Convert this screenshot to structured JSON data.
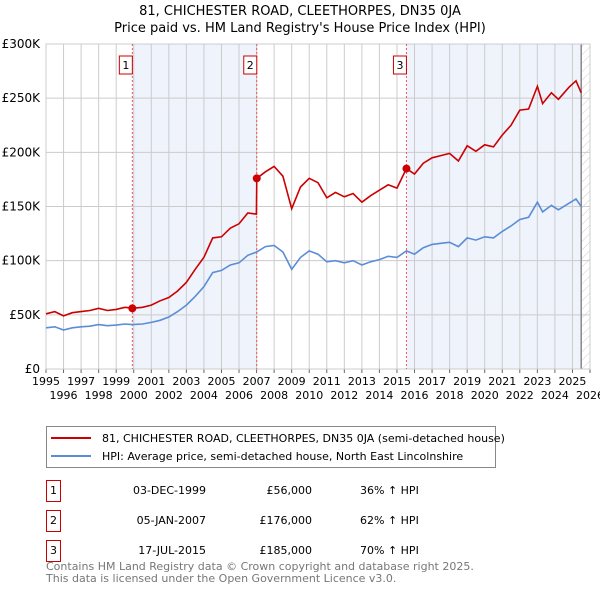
{
  "chart_data": {
    "type": "line",
    "title": "81, CHICHESTER ROAD, CLEETHORPES, DN35 0JA",
    "subtitle": "Price paid vs. HM Land Registry's House Price Index (HPI)",
    "xlabel": "",
    "ylabel": "",
    "xlim": [
      1995,
      2026
    ],
    "ylim": [
      0,
      300000
    ],
    "x_ticks": [
      "1995",
      "1996",
      "1997",
      "1998",
      "1999",
      "2000",
      "2001",
      "2002",
      "2003",
      "2004",
      "2005",
      "2006",
      "2007",
      "2008",
      "2009",
      "2010",
      "2011",
      "2012",
      "2013",
      "2014",
      "2015",
      "2016",
      "2017",
      "2018",
      "2019",
      "2020",
      "2021",
      "2022",
      "2023",
      "2024",
      "2025",
      "2026"
    ],
    "y_ticks": [
      {
        "v": 0,
        "label": "£0"
      },
      {
        "v": 50000,
        "label": "£50K"
      },
      {
        "v": 100000,
        "label": "£100K"
      },
      {
        "v": 150000,
        "label": "£150K"
      },
      {
        "v": 200000,
        "label": "£200K"
      },
      {
        "v": 250000,
        "label": "£250K"
      },
      {
        "v": 300000,
        "label": "£300K"
      }
    ],
    "grid": true,
    "data_end": 2025.5,
    "series": [
      {
        "name": "81, CHICHESTER ROAD, CLEETHORPES, DN35 0JA (semi-detached house)",
        "color": "#cc0000",
        "x": [
          1995,
          1995.5,
          1996,
          1996.5,
          1997,
          1997.5,
          1998,
          1998.5,
          1999,
          1999.5,
          1999.92,
          2000.5,
          2001,
          2001.5,
          2002,
          2002.5,
          2003,
          2003.5,
          2004,
          2004.5,
          2005,
          2005.5,
          2006,
          2006.5,
          2006.99,
          2007.01,
          2007.5,
          2008,
          2008.5,
          2009,
          2009.5,
          2010,
          2010.5,
          2011,
          2011.5,
          2012,
          2012.5,
          2013,
          2013.5,
          2014,
          2014.5,
          2015,
          2015.54,
          2016,
          2016.5,
          2017,
          2017.5,
          2018,
          2018.5,
          2019,
          2019.5,
          2020,
          2020.5,
          2021,
          2021.5,
          2022,
          2022.5,
          2023,
          2023.3,
          2023.8,
          2024.2,
          2024.8,
          2025.2,
          2025.5
        ],
        "y": [
          51,
          53,
          49,
          52,
          53,
          54,
          56,
          54,
          55,
          57,
          56,
          57,
          59,
          63,
          66,
          72,
          80,
          92,
          103,
          121,
          122,
          130,
          134,
          144,
          143,
          176,
          182,
          187,
          178,
          148,
          168,
          176,
          172,
          158,
          163,
          159,
          162,
          154,
          160,
          165,
          170,
          167,
          185,
          180,
          190,
          195,
          197,
          199,
          192,
          206,
          201,
          207,
          205,
          216,
          225,
          239,
          240,
          261,
          245,
          255,
          249,
          260,
          266,
          255
        ],
        "unit": "thousand GBP"
      },
      {
        "name": "HPI: Average price, semi-detached house, North East Lincolnshire",
        "color": "#5b8dd6",
        "x": [
          1995,
          1995.5,
          1996,
          1996.5,
          1997,
          1997.5,
          1998,
          1998.5,
          1999,
          1999.5,
          1999.92,
          2000.5,
          2001,
          2001.5,
          2002,
          2002.5,
          2003,
          2003.5,
          2004,
          2004.5,
          2005,
          2005.5,
          2006,
          2006.5,
          2007,
          2007.5,
          2008,
          2008.5,
          2009,
          2009.5,
          2010,
          2010.5,
          2011,
          2011.5,
          2012,
          2012.5,
          2013,
          2013.5,
          2014,
          2014.5,
          2015,
          2015.54,
          2016,
          2016.5,
          2017,
          2017.5,
          2018,
          2018.5,
          2019,
          2019.5,
          2020,
          2020.5,
          2021,
          2021.5,
          2022,
          2022.5,
          2023,
          2023.3,
          2023.8,
          2024.2,
          2024.8,
          2025.2,
          2025.5
        ],
        "y": [
          38,
          39,
          36,
          38,
          39,
          39.5,
          41,
          40,
          40.5,
          41.5,
          41,
          41.5,
          43,
          45,
          48,
          53,
          59,
          67,
          76,
          89,
          91,
          96,
          98,
          105,
          108,
          113,
          114,
          108,
          92,
          103,
          109,
          106,
          99,
          100,
          98,
          100,
          96,
          99,
          101,
          104,
          103,
          109,
          106,
          112,
          115,
          116,
          117,
          113,
          121,
          119,
          122,
          121,
          127,
          132,
          138,
          140,
          154,
          145,
          151,
          147,
          153,
          157,
          150
        ],
        "unit": "thousand GBP"
      }
    ],
    "sales": [
      {
        "n": "1",
        "x": 1999.92,
        "y": 56,
        "date": "03-DEC-1999",
        "price": "£56,000",
        "hpi": "36% ↑ HPI"
      },
      {
        "n": "2",
        "x": 2007.01,
        "y": 176,
        "date": "05-JAN-2007",
        "price": "£176,000",
        "hpi": "62% ↑ HPI"
      },
      {
        "n": "3",
        "x": 2015.54,
        "y": 185,
        "date": "17-JUL-2015",
        "price": "£185,000",
        "hpi": "70% ↑ HPI"
      }
    ],
    "legend": "below"
  },
  "footer": {
    "line1": "Contains HM Land Registry data © Crown copyright and database right 2025.",
    "line2": "This data is licensed under the Open Government Licence v3.0."
  }
}
